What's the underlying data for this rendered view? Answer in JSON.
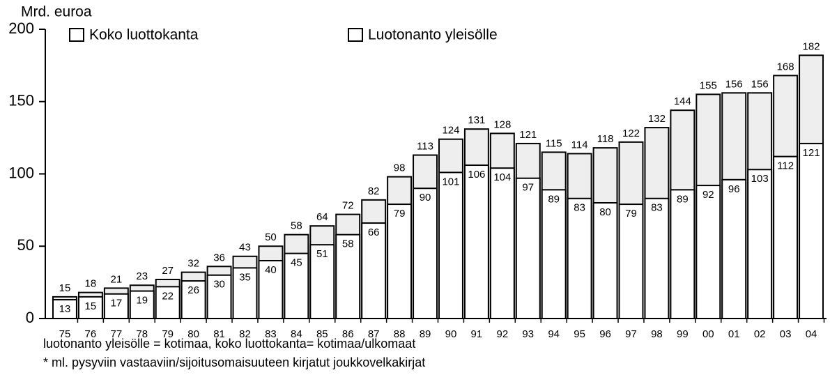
{
  "chart_data": {
    "type": "bar",
    "ylabel": "Mrd. euroa",
    "categories": [
      "75",
      "76",
      "77",
      "78",
      "79",
      "80",
      "81",
      "82",
      "83",
      "84",
      "85",
      "86",
      "87",
      "88",
      "89",
      "90",
      "91",
      "92",
      "93",
      "94",
      "95",
      "96",
      "97",
      "98",
      "99",
      "00",
      "01",
      "02",
      "03",
      "04"
    ],
    "series": [
      {
        "name": "Luotonanto yleisölle",
        "color": "#ffffff",
        "values": [
          13,
          15,
          17,
          19,
          22,
          26,
          30,
          35,
          40,
          45,
          51,
          58,
          66,
          79,
          90,
          101,
          106,
          104,
          97,
          89,
          83,
          80,
          79,
          83,
          89,
          92,
          96,
          103,
          112,
          121
        ]
      },
      {
        "name": "Koko luottokanta",
        "color": "#eeeeee",
        "values": [
          15,
          18,
          21,
          23,
          27,
          32,
          36,
          43,
          50,
          58,
          64,
          72,
          82,
          98,
          113,
          124,
          131,
          128,
          121,
          115,
          114,
          118,
          122,
          132,
          144,
          155,
          156,
          156,
          168,
          182
        ]
      }
    ],
    "ylim": [
      0,
      200
    ],
    "yticks": [
      0,
      50,
      100,
      150,
      200
    ],
    "notes": [
      "luotonanto yleisölle = kotimaa, koko luottokanta= kotimaa/ulkomaat",
      "* ml. pysyviin vastaaviin/sijoitusomaisuuteen kirjatut joukkovelkakirjat"
    ]
  }
}
